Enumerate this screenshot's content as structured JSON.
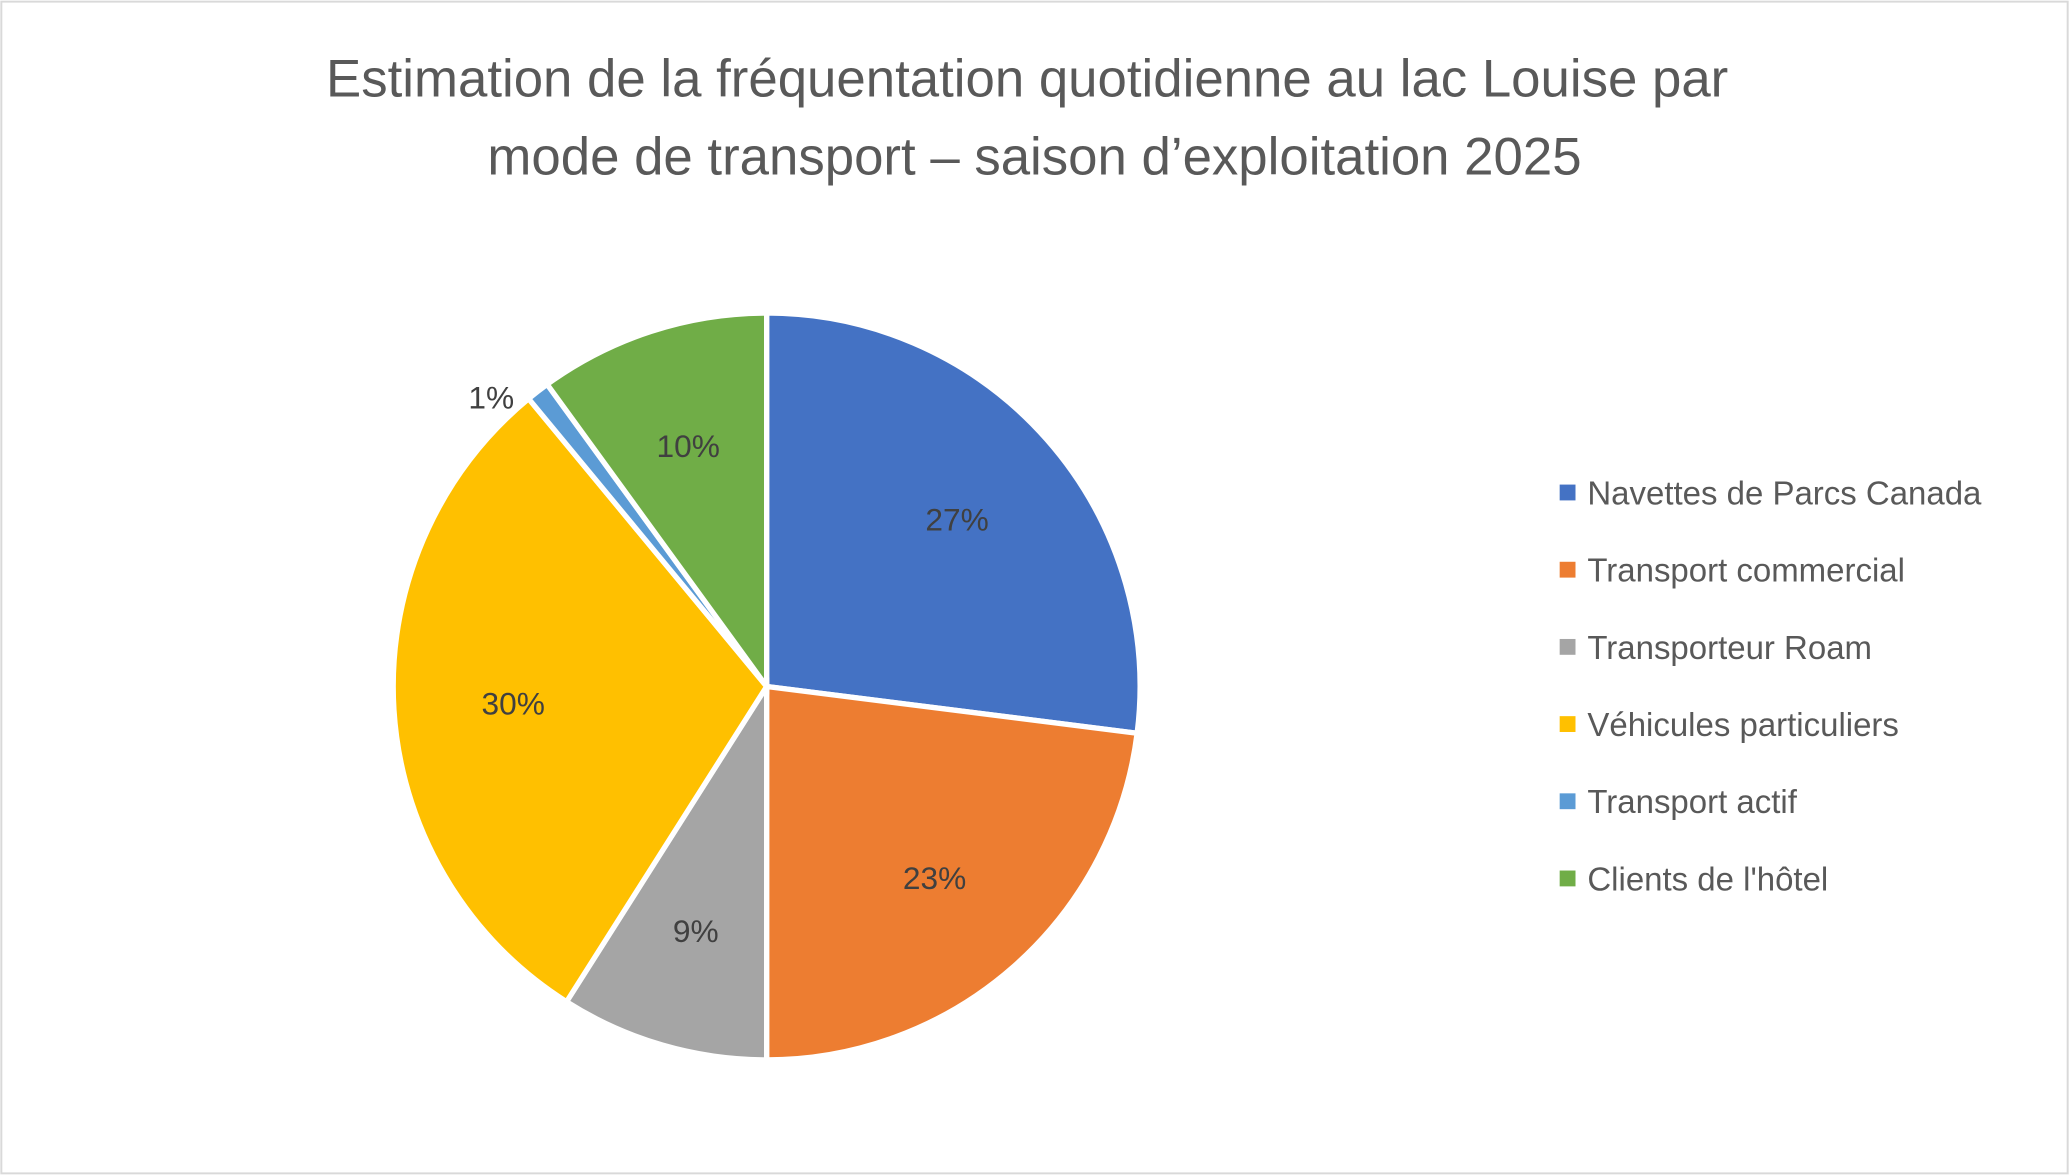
{
  "chart_data": {
    "type": "pie",
    "title": [
      "Estimation de la fréquentation quotidienne au lac Louise par",
      "mode de transport – saison d’exploitation 2025"
    ],
    "categories": [
      "Navettes de Parcs Canada",
      "Transport commercial",
      "Transporteur Roam",
      "Véhicules particuliers",
      "Transport actif",
      "Clients de l'hôtel"
    ],
    "values": [
      27,
      23,
      9,
      30,
      1,
      10
    ],
    "labels": [
      "27%",
      "23%",
      "9%",
      "30%",
      "1%",
      "10%"
    ],
    "colors": [
      "#4472C4",
      "#ED7D31",
      "#A5A5A5",
      "#FFC000",
      "#5B9BD5",
      "#70AD47"
    ],
    "legend_position": "right",
    "start_angle": "top, clockwise"
  }
}
